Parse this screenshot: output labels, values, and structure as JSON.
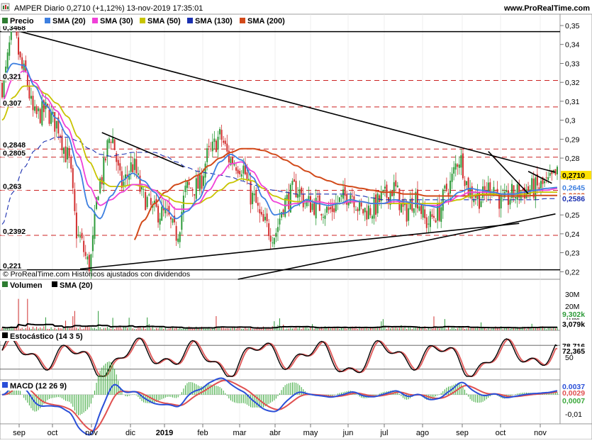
{
  "header": {
    "title": "AMPER Diario 0,2710 (+1,12%) 13-nov-2019 17:35:01",
    "site": "www.ProRealTime.com",
    "copyright": "© ProRealTime.com  Históricos ajustados con dividendos"
  },
  "colors": {
    "price": "#2e7d32",
    "sma20": "#3d7fe0",
    "sma30": "#f040d8",
    "sma50": "#c8c400",
    "sma130": "#1a2fb0",
    "sma200": "#d24a1a",
    "trend": "#000000",
    "ref": "#cc2222",
    "stoch_k": "#000000",
    "stoch_d": "#e06060",
    "macd": "#2a4fd8",
    "macd_signal": "#e05050",
    "macd_hist": "#3aa83a"
  },
  "chart_data": [
    {
      "type": "line",
      "panel": "price",
      "title": "AMPER Diario",
      "legend": [
        "Precio",
        "SMA (20)",
        "SMA (30)",
        "SMA (50)",
        "SMA (130)",
        "SMA (200)"
      ],
      "x_ticks": [
        "sep",
        "oct",
        "nov",
        "dic",
        "2019",
        "feb",
        "mar",
        "abr",
        "may",
        "jun",
        "jul",
        "ago",
        "sep",
        "oct",
        "nov"
      ],
      "y_ticks": [
        "0,35",
        "0,34",
        "0,33",
        "0,32",
        "0,31",
        "0,3",
        "0,29",
        "0,28",
        "0,27",
        "0,26",
        "0,25",
        "0,24",
        "0,23",
        "0,22"
      ],
      "ylim": [
        0.216,
        0.356
      ],
      "level_labels": [
        "0,3468",
        "0,321",
        "0,307",
        "0,2848",
        "0,2805",
        "0,263",
        "0,2392",
        "0,221"
      ],
      "right_labels": {
        "last": "0,2710",
        "sma20": "0,2645",
        "sma200": "0,2603",
        "sma130": "0,2586"
      },
      "ref_levels": [
        0.321,
        0.307,
        0.2848,
        0.2805,
        0.263,
        0.2392
      ],
      "solid_levels": [
        0.3468,
        0.221
      ],
      "series_anchors": {
        "x_index": [
          0,
          6,
          12,
          18,
          24,
          30,
          36,
          42,
          48,
          54,
          60,
          66,
          72,
          78,
          84,
          90,
          96,
          102,
          108,
          114,
          120,
          126,
          132,
          138,
          144,
          150,
          156,
          162,
          168,
          174,
          180,
          186,
          192,
          198,
          204,
          210,
          216,
          222,
          228,
          234,
          240,
          246,
          252,
          258,
          264,
          270,
          276,
          282,
          288,
          294,
          300,
          306
        ],
        "close": [
          0.318,
          0.346,
          0.325,
          0.302,
          0.305,
          0.298,
          0.281,
          0.238,
          0.224,
          0.268,
          0.292,
          0.266,
          0.276,
          0.259,
          0.252,
          0.25,
          0.24,
          0.264,
          0.265,
          0.282,
          0.291,
          0.279,
          0.276,
          0.259,
          0.245,
          0.24,
          0.257,
          0.264,
          0.256,
          0.255,
          0.252,
          0.257,
          0.262,
          0.252,
          0.253,
          0.259,
          0.264,
          0.251,
          0.26,
          0.246,
          0.251,
          0.265,
          0.28,
          0.262,
          0.259,
          0.266,
          0.256,
          0.261,
          0.263,
          0.264,
          0.266,
          0.271
        ],
        "sma20": [
          0.322,
          0.33,
          0.329,
          0.318,
          0.308,
          0.301,
          0.292,
          0.275,
          0.254,
          0.248,
          0.26,
          0.268,
          0.272,
          0.268,
          0.262,
          0.253,
          0.248,
          0.252,
          0.258,
          0.268,
          0.278,
          0.282,
          0.279,
          0.27,
          0.259,
          0.25,
          0.251,
          0.255,
          0.258,
          0.256,
          0.255,
          0.256,
          0.258,
          0.257,
          0.256,
          0.256,
          0.258,
          0.257,
          0.256,
          0.255,
          0.254,
          0.258,
          0.262,
          0.264,
          0.263,
          0.262,
          0.261,
          0.261,
          0.262,
          0.263,
          0.264,
          0.2645
        ],
        "sma30": [
          0.31,
          0.322,
          0.326,
          0.32,
          0.312,
          0.305,
          0.296,
          0.282,
          0.265,
          0.255,
          0.258,
          0.262,
          0.266,
          0.266,
          0.263,
          0.258,
          0.253,
          0.253,
          0.256,
          0.263,
          0.271,
          0.277,
          0.278,
          0.273,
          0.265,
          0.257,
          0.255,
          0.256,
          0.257,
          0.257,
          0.256,
          0.256,
          0.257,
          0.257,
          0.256,
          0.256,
          0.257,
          0.257,
          0.256,
          0.255,
          0.255,
          0.257,
          0.26,
          0.262,
          0.262,
          0.262,
          0.261,
          0.261,
          0.262,
          0.263,
          0.263,
          0.264
        ],
        "sma50": [
          0.3,
          0.312,
          0.318,
          0.318,
          0.314,
          0.309,
          0.302,
          0.291,
          0.278,
          0.268,
          0.265,
          0.265,
          0.266,
          0.265,
          0.263,
          0.26,
          0.257,
          0.256,
          0.256,
          0.259,
          0.263,
          0.267,
          0.269,
          0.268,
          0.264,
          0.26,
          0.258,
          0.257,
          0.257,
          0.257,
          0.256,
          0.256,
          0.257,
          0.257,
          0.256,
          0.256,
          0.256,
          0.256,
          0.256,
          0.256,
          0.256,
          0.257,
          0.258,
          0.26,
          0.261,
          0.261,
          0.261,
          0.261,
          0.261,
          0.262,
          0.262,
          0.262
        ],
        "sma130": [
          0.245,
          0.262,
          0.275,
          0.284,
          0.289,
          0.291,
          0.291,
          0.289,
          0.285,
          0.282,
          0.281,
          0.282,
          0.283,
          0.283,
          0.283,
          0.281,
          0.278,
          0.275,
          0.273,
          0.272,
          0.271,
          0.27,
          0.268,
          0.266,
          0.264,
          0.263,
          0.262,
          0.261,
          0.261,
          0.261,
          0.261,
          0.261,
          0.261,
          0.26,
          0.259,
          0.258,
          0.258,
          0.258,
          0.258,
          0.258,
          0.258,
          0.258,
          0.258,
          0.258,
          0.258,
          0.258,
          0.258,
          0.258,
          0.258,
          0.258,
          0.2586,
          0.2586
        ],
        "sma200": [
          null,
          null,
          null,
          null,
          null,
          null,
          null,
          null,
          null,
          null,
          null,
          null,
          0.236,
          0.247,
          0.256,
          0.262,
          0.266,
          0.268,
          0.271,
          0.276,
          0.28,
          0.283,
          0.285,
          0.285,
          0.284,
          0.282,
          0.279,
          0.276,
          0.273,
          0.27,
          0.268,
          0.266,
          0.265,
          0.264,
          0.263,
          0.262,
          0.262,
          0.261,
          0.261,
          0.26,
          0.26,
          0.26,
          0.26,
          0.26,
          0.2605,
          0.2605,
          0.26,
          0.26,
          0.26,
          0.2603,
          0.2603,
          0.2603
        ]
      },
      "trendlines": [
        {
          "from": [
            10,
            0.3468
          ],
          "to": [
            305,
            0.2725
          ]
        },
        {
          "from": [
            55,
            0.2935
          ],
          "to": [
            100,
            0.2753
          ]
        },
        {
          "from": [
            43,
            0.2214
          ],
          "to": [
            285,
            0.2455
          ]
        },
        {
          "from": [
            130,
            0.216
          ],
          "to": [
            305,
            0.2505
          ]
        },
        {
          "from": [
            268,
            0.2835
          ],
          "to": [
            290,
            0.2612
          ]
        },
        {
          "from": [
            290,
            0.273
          ],
          "to": [
            303,
            0.2667
          ]
        }
      ]
    },
    {
      "type": "bar",
      "panel": "volume",
      "legend": [
        "Volumen",
        "SMA (20)"
      ],
      "y_ticks": [
        "30M",
        "20M",
        "10M"
      ],
      "right_labels": {
        "volume": "9,302k",
        "sma20": "3,079k"
      },
      "ylim": [
        0,
        34000000
      ]
    },
    {
      "type": "line",
      "panel": "stochastic",
      "legend": [
        "Estocástico (14 3 5)"
      ],
      "y_ticks": [
        "50"
      ],
      "right_labels": {
        "k": "78,716",
        "d": "72,365"
      },
      "ylim": [
        0,
        100
      ],
      "ref_levels": [
        80,
        20
      ]
    },
    {
      "type": "line",
      "panel": "macd",
      "legend": [
        "MACD (12 26 9)"
      ],
      "y_ticks": [
        "-0,01"
      ],
      "right_labels": {
        "macd": "0,0037",
        "signal": "0,0029",
        "hist": "0,0007"
      },
      "ylim": [
        -0.0145,
        0.0055
      ]
    }
  ]
}
